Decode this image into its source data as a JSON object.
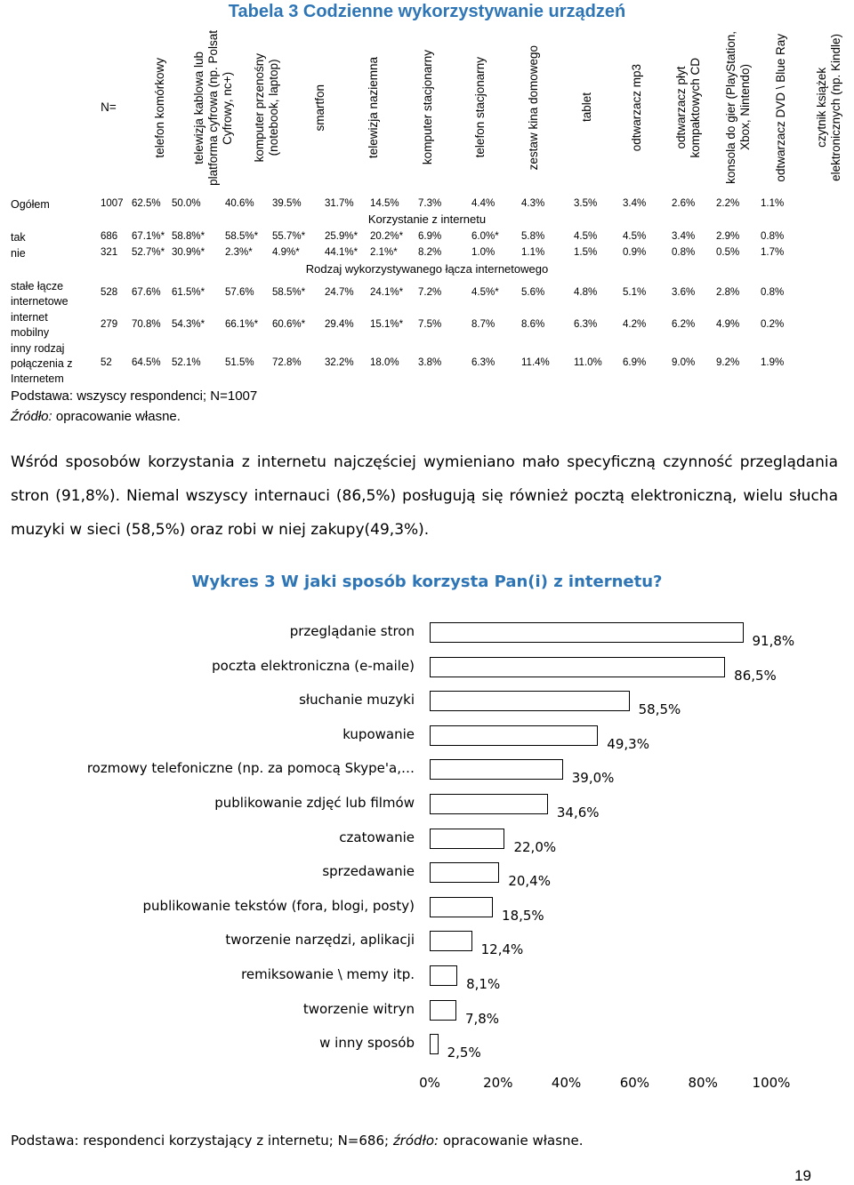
{
  "table": {
    "title": "Tabela 3 Codzienne wykorzystywanie urządzeń",
    "headers": [
      "N=",
      "telefon komórkowy",
      "telewizja kablowa lub platforma cyfrowa (np. Polsat Cyfrowy, nc+)",
      "komputer przenośny (notebook, laptop)",
      "smartfon",
      "telewizja naziemna",
      "komputer stacjonarny",
      "telefon stacjonarny",
      "zestaw kina domowego",
      "tablet",
      "odtwarzacz mp3",
      "odtwarzacz płyt kompaktowych CD",
      "konsola do gier (PlayStation, Xbox, Nintendo)",
      "odtwarzacz DVD \\ Blue Ray",
      "czytnik książek elektronicznych (np. Kindle)"
    ],
    "header_lines": [
      "N=",
      "telefon komórkowy",
      "telewizja kablowa lub\nplatforma cyfrowa (np. Polsat\nCyfrowy, nc+)",
      "komputer przenośny\n(notebook, laptop)",
      "smartfon",
      "telewizja naziemna",
      "komputer stacjonarny",
      "telefon stacjonarny",
      "zestaw kina domowego",
      "tablet",
      "odtwarzacz mp3",
      "odtwarzacz płyt\nkompaktowych CD",
      "konsola do gier (PlayStation,\nXbox, Nintendo)",
      "odtwarzacz DVD \\ Blue Ray",
      "czytnik książek\nelektronicznych (np. Kindle)"
    ],
    "section_internet": "Korzystanie z internetu",
    "section_connection": "Rodzaj wykorzystywanego łącza internetowego",
    "rows": [
      {
        "label": "Ogółem",
        "values": [
          "1007",
          "62.5%",
          "50.0%",
          "40.6%",
          "39.5%",
          "31.7%",
          "14.5%",
          "7.3%",
          "4.4%",
          "4.3%",
          "3.5%",
          "3.4%",
          "2.6%",
          "2.2%",
          "1.1%"
        ]
      },
      {
        "label": "tak",
        "values": [
          "686",
          "67.1%*",
          "58.8%*",
          "58.5%*",
          "55.7%*",
          "25.9%*",
          "20.2%*",
          "6.9%",
          "6.0%*",
          "5.8%",
          "4.5%",
          "4.5%",
          "3.4%",
          "2.9%",
          "0.8%"
        ]
      },
      {
        "label": "nie",
        "values": [
          "321",
          "52.7%*",
          "30.9%*",
          "2.3%*",
          "4.9%*",
          "44.1%*",
          "2.1%*",
          "8.2%",
          "1.0%",
          "1.1%",
          "1.5%",
          "0.9%",
          "0.8%",
          "0.5%",
          "1.7%"
        ]
      },
      {
        "label": "stałe łącze internetowe",
        "values": [
          "528",
          "67.6%",
          "61.5%*",
          "57.6%",
          "58.5%*",
          "24.7%",
          "24.1%*",
          "7.2%",
          "4.5%*",
          "5.6%",
          "4.8%",
          "5.1%",
          "3.6%",
          "2.8%",
          "0.8%"
        ]
      },
      {
        "label": "internet mobilny",
        "values": [
          "279",
          "70.8%",
          "54.3%*",
          "66.1%*",
          "60.6%*",
          "29.4%",
          "15.1%*",
          "7.5%",
          "8.7%",
          "8.6%",
          "6.3%",
          "4.2%",
          "6.2%",
          "4.9%",
          "0.2%"
        ]
      },
      {
        "label": "inny rodzaj połączenia z Internetem",
        "values": [
          "52",
          "64.5%",
          "52.1%",
          "51.5%",
          "72.8%",
          "32.2%",
          "18.0%",
          "3.8%",
          "6.3%",
          "11.4%",
          "11.0%",
          "6.9%",
          "9.0%",
          "9.2%",
          "1.9%"
        ]
      }
    ],
    "basis": "Podstawa: wszyscy respondenci; N=1007",
    "source_label": "Źródło:",
    "source_text": " opracowanie własne."
  },
  "paragraph": "Wśród sposobów korzystania z internetu najczęściej wymieniano mało specyficzną czynność przeglądania stron (91,8%). Niemal wszyscy internauci (86,5%) posługują się również pocztą elektroniczną, wielu słucha muzyki w sieci (58,5%) oraz robi w niej zakupy(49,3%).",
  "chart_data": {
    "type": "bar",
    "orientation": "horizontal",
    "title": "Wykres 3 W jaki sposób korzysta Pan(i) z internetu?",
    "categories": [
      "przeglądanie stron",
      "poczta elektroniczna (e-maile)",
      "słuchanie muzyki",
      "kupowanie",
      "rozmowy telefoniczne (np. za pomocą Skype'a,…",
      "publikowanie zdjęć lub filmów",
      "czatowanie",
      "sprzedawanie",
      "publikowanie tekstów (fora, blogi, posty)",
      "tworzenie narzędzi, aplikacji",
      "remiksowanie \\ memy itp.",
      "tworzenie witryn",
      "w inny sposób"
    ],
    "values": [
      91.8,
      86.5,
      58.5,
      49.3,
      39.0,
      34.6,
      22.0,
      20.4,
      18.5,
      12.4,
      8.1,
      7.8,
      2.5
    ],
    "value_labels": [
      "91,8%",
      "86,5%",
      "58,5%",
      "49,3%",
      "39,0%",
      "34,6%",
      "22,0%",
      "20,4%",
      "18,5%",
      "12,4%",
      "8,1%",
      "7,8%",
      "2,5%"
    ],
    "xlim": [
      0,
      100
    ],
    "xticks": [
      "0%",
      "20%",
      "40%",
      "60%",
      "80%",
      "100%"
    ],
    "grid": false,
    "legend": false
  },
  "footnote": {
    "prefix": "Podstawa: respondenci korzystający z internetu; N=686; ",
    "source_label": "źródło:",
    "source_text": " opracowanie własne."
  },
  "page_number": "19"
}
